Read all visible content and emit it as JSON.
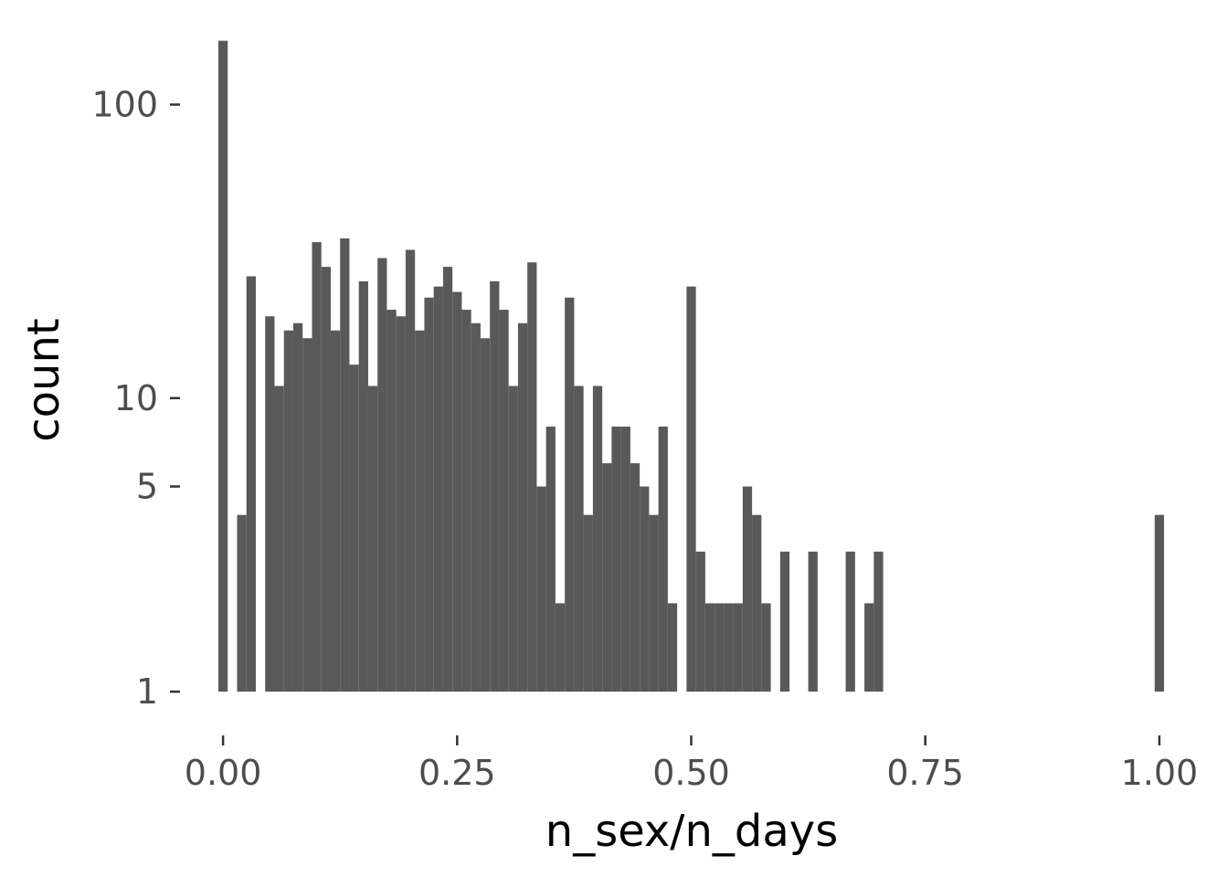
{
  "chart_data": {
    "type": "histogram",
    "title": "",
    "xlabel": "n_sex/n_days",
    "ylabel": "count",
    "x_scale": "linear",
    "y_scale": "log10",
    "xlim": [
      -0.045,
      1.045
    ],
    "ylim": [
      0.79,
      173
    ],
    "x_ticks": [
      0,
      0.25,
      0.5,
      0.75,
      1.0
    ],
    "x_tick_labels": [
      "0.00",
      "0.25",
      "0.50",
      "0.75",
      "1.00"
    ],
    "y_ticks": [
      1,
      5,
      10,
      100
    ],
    "y_tick_labels": [
      "1",
      "5",
      "10",
      "100"
    ],
    "bin_width": 0.01,
    "bar_color": "#595959",
    "bins_x": [
      0.0,
      0.02,
      0.03,
      0.05,
      0.06,
      0.07,
      0.08,
      0.09,
      0.1,
      0.11,
      0.12,
      0.13,
      0.14,
      0.15,
      0.16,
      0.17,
      0.18,
      0.19,
      0.2,
      0.21,
      0.22,
      0.23,
      0.24,
      0.25,
      0.26,
      0.27,
      0.28,
      0.29,
      0.3,
      0.31,
      0.32,
      0.33,
      0.34,
      0.35,
      0.36,
      0.37,
      0.38,
      0.39,
      0.4,
      0.41,
      0.42,
      0.43,
      0.44,
      0.45,
      0.46,
      0.47,
      0.48,
      0.5,
      0.51,
      0.52,
      0.53,
      0.54,
      0.55,
      0.56,
      0.57,
      0.58,
      0.6,
      0.63,
      0.67,
      0.69,
      0.7,
      1.0
    ],
    "counts": [
      165,
      4,
      26,
      19,
      11,
      17,
      18,
      16,
      34,
      28,
      17,
      35,
      13,
      25,
      11,
      30,
      20,
      19,
      32,
      17,
      22,
      24,
      28,
      23,
      20,
      18,
      16,
      25,
      20,
      11,
      18,
      29,
      5,
      8,
      2,
      22,
      11,
      4,
      11,
      6,
      8,
      8,
      6,
      5,
      4,
      8,
      2,
      24,
      3,
      2,
      2,
      2,
      2,
      5,
      4,
      2,
      3,
      3,
      3,
      2,
      3,
      4
    ]
  }
}
